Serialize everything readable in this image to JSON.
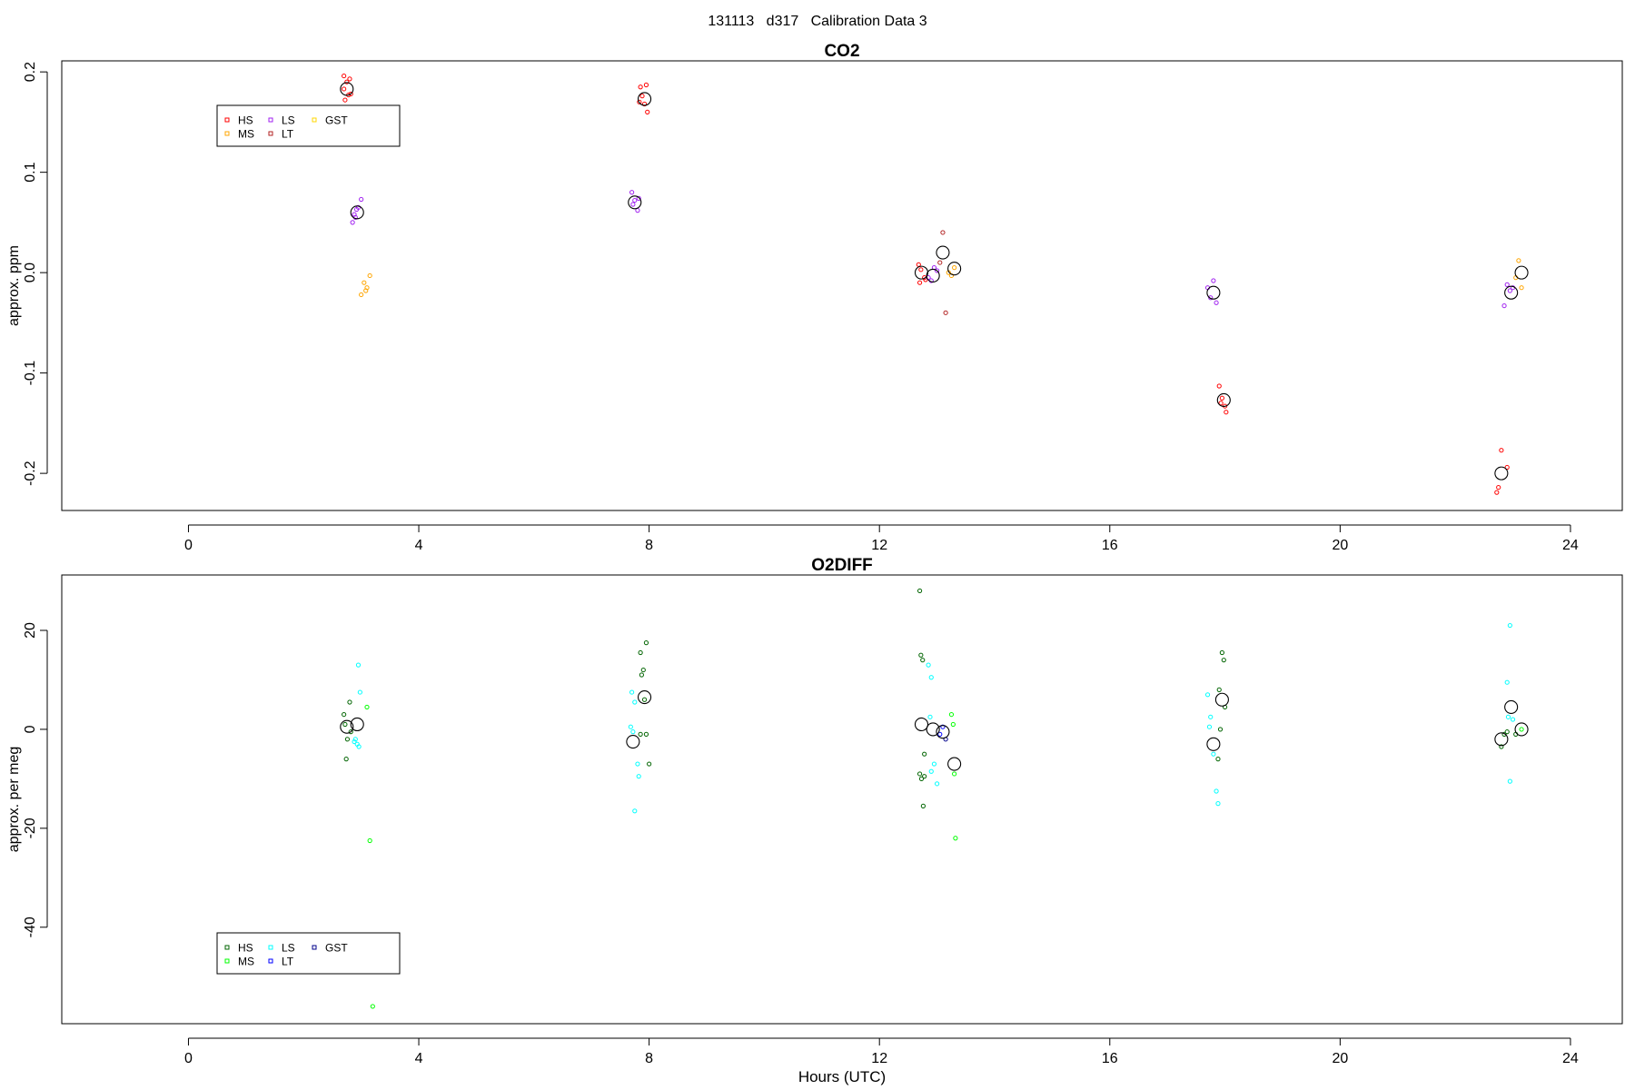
{
  "figure_title": "131113   d317   Calibration Data 3",
  "chart_data": [
    {
      "type": "scatter",
      "title": "CO2",
      "xlabel": "",
      "ylabel": "approx. ppm",
      "xlim": [
        -2.2,
        24.9
      ],
      "ylim": [
        -0.237,
        0.211
      ],
      "xticks": [
        0,
        4,
        8,
        12,
        16,
        20,
        24
      ],
      "xtick_labels": [
        "0",
        "4",
        "8",
        "12",
        "16",
        "20",
        "24"
      ],
      "yticks": [
        0.2,
        0.1,
        0.0,
        -0.1,
        -0.2
      ],
      "ytick_labels": [
        "0.2",
        "0.1",
        "0.0",
        "-0.1",
        "-0.2"
      ],
      "grid": false,
      "legend_position": "top-left",
      "legend": [
        {
          "label": "HS",
          "color": "#ff0000"
        },
        {
          "label": "MS",
          "color": "#ffa500"
        },
        {
          "label": "LS",
          "color": "#a020f0"
        },
        {
          "label": "LT",
          "color": "#b22222"
        },
        {
          "label": "GST",
          "color": "#ffd700"
        }
      ],
      "series": [
        {
          "name": "HS",
          "color": "#ff0000",
          "points": [
            [
              2.7,
              0.196
            ],
            [
              2.75,
              0.19
            ],
            [
              2.8,
              0.193
            ],
            [
              2.7,
              0.183
            ],
            [
              2.78,
              0.177
            ],
            [
              2.72,
              0.172
            ],
            [
              2.82,
              0.178
            ],
            [
              7.85,
              0.185
            ],
            [
              7.95,
              0.187
            ],
            [
              7.88,
              0.176
            ],
            [
              7.92,
              0.168
            ],
            [
              7.97,
              0.16
            ],
            [
              7.83,
              0.17
            ],
            [
              12.68,
              0.008
            ],
            [
              12.72,
              0.003
            ],
            [
              12.78,
              -0.005
            ],
            [
              12.7,
              -0.01
            ],
            [
              12.8,
              -0.007
            ],
            [
              17.9,
              -0.113
            ],
            [
              17.95,
              -0.125
            ],
            [
              18.0,
              -0.133
            ],
            [
              17.93,
              -0.13
            ],
            [
              18.02,
              -0.139
            ],
            [
              22.8,
              -0.177
            ],
            [
              22.9,
              -0.194
            ],
            [
              22.75,
              -0.214
            ],
            [
              22.72,
              -0.219
            ]
          ]
        },
        {
          "name": "MS",
          "color": "#ffa500",
          "points": [
            [
              3.05,
              -0.01
            ],
            [
              3.1,
              -0.015
            ],
            [
              3.0,
              -0.022
            ],
            [
              3.15,
              -0.003
            ],
            [
              3.08,
              -0.018
            ],
            [
              13.25,
              -0.003
            ],
            [
              13.3,
              0.005
            ],
            [
              13.2,
              0.0
            ],
            [
              23.1,
              0.012
            ],
            [
              23.15,
              -0.015
            ],
            [
              23.05,
              -0.005
            ]
          ]
        },
        {
          "name": "LS",
          "color": "#a020f0",
          "points": [
            [
              2.85,
              0.05
            ],
            [
              2.9,
              0.055
            ],
            [
              2.95,
              0.065
            ],
            [
              3.0,
              0.073
            ],
            [
              2.88,
              0.058
            ],
            [
              2.92,
              0.063
            ],
            [
              7.7,
              0.08
            ],
            [
              7.75,
              0.072
            ],
            [
              7.8,
              0.062
            ],
            [
              7.72,
              0.068
            ],
            [
              7.82,
              0.074
            ],
            [
              12.9,
              -0.008
            ],
            [
              12.95,
              0.005
            ],
            [
              13.0,
              0.002
            ],
            [
              12.85,
              -0.005
            ],
            [
              17.7,
              -0.015
            ],
            [
              17.75,
              -0.025
            ],
            [
              17.8,
              -0.008
            ],
            [
              17.85,
              -0.03
            ],
            [
              22.9,
              -0.012
            ],
            [
              22.95,
              -0.018
            ],
            [
              22.85,
              -0.033
            ],
            [
              23.0,
              -0.015
            ]
          ]
        },
        {
          "name": "LT",
          "color": "#b22222",
          "points": [
            [
              13.1,
              0.04
            ],
            [
              13.15,
              -0.04
            ],
            [
              13.05,
              0.01
            ]
          ]
        },
        {
          "name": "GST",
          "color": "#ffd700",
          "points": []
        },
        {
          "name": "",
          "color": "#000000",
          "marker": "mean",
          "points": [
            [
              2.75,
              0.183
            ],
            [
              2.93,
              0.06
            ],
            [
              7.92,
              0.173
            ],
            [
              7.75,
              0.07
            ],
            [
              12.73,
              0.0
            ],
            [
              12.93,
              -0.003
            ],
            [
              13.1,
              0.02
            ],
            [
              13.3,
              0.004
            ],
            [
              17.8,
              -0.02
            ],
            [
              17.98,
              -0.127
            ],
            [
              22.8,
              -0.2
            ],
            [
              22.97,
              -0.02
            ],
            [
              23.15,
              0.0
            ]
          ]
        }
      ]
    },
    {
      "type": "scatter",
      "title": "O2DIFF",
      "xlabel": "Hours (UTC)",
      "ylabel": "approx. per meg",
      "xlim": [
        -2.2,
        24.9
      ],
      "ylim": [
        -59.5,
        31.2
      ],
      "xticks": [
        0,
        4,
        8,
        12,
        16,
        20,
        24
      ],
      "xtick_labels": [
        "0",
        "4",
        "8",
        "12",
        "16",
        "20",
        "24"
      ],
      "yticks": [
        20,
        0,
        -20,
        -40
      ],
      "ytick_labels": [
        "20",
        "0",
        "-20",
        "-40"
      ],
      "grid": false,
      "legend_position": "bottom-left",
      "legend": [
        {
          "label": "HS",
          "color": "#006400"
        },
        {
          "label": "MS",
          "color": "#00ff00"
        },
        {
          "label": "LS",
          "color": "#00ffff"
        },
        {
          "label": "LT",
          "color": "#0000ff"
        },
        {
          "label": "GST",
          "color": "#00008b"
        }
      ],
      "series": [
        {
          "name": "HS",
          "color": "#006400",
          "points": [
            [
              2.7,
              3
            ],
            [
              2.8,
              5.5
            ],
            [
              2.72,
              1
            ],
            [
              2.76,
              -2
            ],
            [
              2.74,
              -6
            ],
            [
              2.82,
              -0.5
            ],
            [
              7.85,
              15.5
            ],
            [
              7.95,
              17.5
            ],
            [
              7.9,
              12
            ],
            [
              7.87,
              11
            ],
            [
              7.92,
              6
            ],
            [
              7.85,
              -1
            ],
            [
              7.95,
              -1
            ],
            [
              8.0,
              -7
            ],
            [
              12.7,
              28
            ],
            [
              12.72,
              15
            ],
            [
              12.75,
              14
            ],
            [
              12.78,
              -5
            ],
            [
              12.7,
              -9
            ],
            [
              12.78,
              -9.5
            ],
            [
              12.73,
              -10
            ],
            [
              12.76,
              -15.5
            ],
            [
              17.95,
              15.5
            ],
            [
              17.98,
              14
            ],
            [
              17.9,
              8
            ],
            [
              18.0,
              4.5
            ],
            [
              17.92,
              0
            ],
            [
              17.88,
              -6
            ],
            [
              22.8,
              -3.5
            ],
            [
              22.85,
              -1
            ],
            [
              22.9,
              -0.5
            ],
            [
              23.05,
              -1
            ]
          ]
        },
        {
          "name": "MS",
          "color": "#00ff00",
          "points": [
            [
              3.1,
              4.5
            ],
            [
              3.15,
              -22.5
            ],
            [
              3.2,
              -56
            ],
            [
              13.25,
              3
            ],
            [
              13.28,
              1
            ],
            [
              13.3,
              -9
            ],
            [
              13.32,
              -22
            ],
            [
              23.15,
              0
            ]
          ]
        },
        {
          "name": "LS",
          "color": "#00ffff",
          "points": [
            [
              2.95,
              13
            ],
            [
              2.98,
              7.5
            ],
            [
              2.9,
              -2
            ],
            [
              2.93,
              -3
            ],
            [
              2.88,
              -2.5
            ],
            [
              2.96,
              -3.5
            ],
            [
              7.7,
              7.5
            ],
            [
              7.75,
              5.5
            ],
            [
              7.68,
              0.5
            ],
            [
              7.72,
              -0.5
            ],
            [
              7.8,
              -7
            ],
            [
              7.82,
              -9.5
            ],
            [
              7.75,
              -16.5
            ],
            [
              12.85,
              13
            ],
            [
              12.9,
              10.5
            ],
            [
              12.88,
              2.5
            ],
            [
              12.95,
              -7
            ],
            [
              12.9,
              -8.5
            ],
            [
              13.0,
              -11
            ],
            [
              17.7,
              7
            ],
            [
              17.75,
              2.5
            ],
            [
              17.73,
              0.5
            ],
            [
              17.8,
              -5
            ],
            [
              17.85,
              -12.5
            ],
            [
              17.88,
              -15
            ],
            [
              22.95,
              21
            ],
            [
              22.9,
              9.5
            ],
            [
              22.92,
              2.5
            ],
            [
              23.0,
              2
            ],
            [
              22.95,
              -10.5
            ]
          ]
        },
        {
          "name": "LT",
          "color": "#0000ff",
          "points": [
            [
              13.1,
              0.5
            ],
            [
              13.05,
              -1
            ]
          ]
        },
        {
          "name": "GST",
          "color": "#00008b",
          "points": [
            [
              13.15,
              -2
            ]
          ]
        },
        {
          "name": "",
          "color": "#000000",
          "marker": "mean",
          "points": [
            [
              2.75,
              0.5
            ],
            [
              2.93,
              1
            ],
            [
              7.72,
              -2.5
            ],
            [
              7.92,
              6.5
            ],
            [
              12.73,
              1
            ],
            [
              12.93,
              0
            ],
            [
              13.1,
              -0.5
            ],
            [
              13.3,
              -7
            ],
            [
              17.8,
              -3
            ],
            [
              17.95,
              6
            ],
            [
              22.8,
              -2
            ],
            [
              22.97,
              4.5
            ],
            [
              23.15,
              0
            ]
          ]
        }
      ]
    }
  ]
}
